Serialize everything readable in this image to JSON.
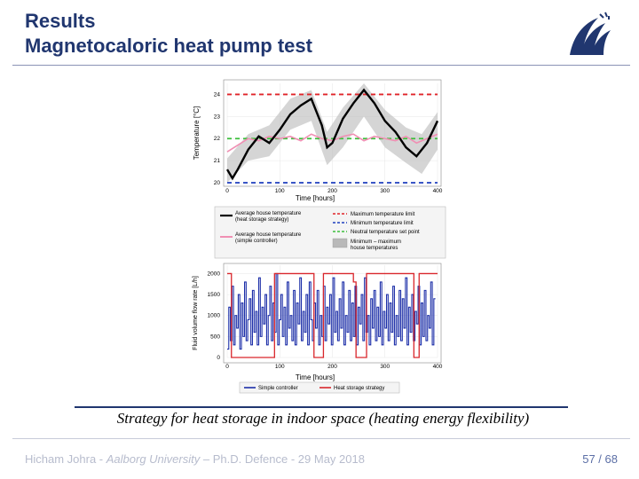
{
  "slide": {
    "title_line1": "Results",
    "title_line2": "Magnetocaloric heat pump test",
    "caption": "Strategy for heat storage in indoor space (heating energy flexibility)",
    "footer_author": "Hicham Johra - ",
    "footer_university": "Aalborg University",
    "footer_rest": " – Ph.D. Defence - 29 May 2018",
    "page_current": "57",
    "page_sep": " / ",
    "page_total": "68"
  },
  "colors": {
    "title": "#20366f",
    "black_series": "#000000",
    "pink_series": "#f08fb3",
    "max_limit": "#e0242a",
    "min_limit": "#1f3fbf",
    "setpoint": "#3cbf3c",
    "band": "#b9b9b9",
    "simple_flow": "#1c2ea8",
    "storage_flow": "#d9262b"
  },
  "chart_data": [
    {
      "type": "line",
      "xlabel": "Time [hours]",
      "ylabel": "Temperature [°C]",
      "xlim": [
        0,
        400
      ],
      "ylim": [
        20,
        24.5
      ],
      "xticks": [
        "0",
        "100",
        "200",
        "300",
        "400"
      ],
      "yticks": [
        "20",
        "21",
        "22",
        "23",
        "24"
      ],
      "grid": true,
      "series": [
        {
          "name": "Average house temperature (heat storage strategy)",
          "x": [
            0,
            10,
            20,
            40,
            60,
            80,
            100,
            120,
            140,
            160,
            180,
            190,
            200,
            220,
            240,
            260,
            280,
            300,
            320,
            340,
            360,
            380,
            400
          ],
          "values": [
            20.6,
            20.2,
            20.6,
            21.5,
            22.1,
            21.8,
            22.4,
            23.1,
            23.5,
            23.8,
            22.6,
            21.6,
            21.8,
            22.9,
            23.6,
            24.2,
            23.6,
            22.8,
            22.3,
            21.6,
            21.2,
            21.8,
            22.8
          ]
        },
        {
          "name": "Average house temperature (simple controller)",
          "x": [
            0,
            20,
            40,
            60,
            80,
            100,
            120,
            140,
            160,
            180,
            200,
            220,
            240,
            260,
            280,
            300,
            320,
            340,
            360,
            380,
            400
          ],
          "values": [
            21.4,
            21.7,
            22.0,
            21.9,
            22.1,
            22.0,
            22.1,
            21.9,
            22.2,
            22.0,
            21.9,
            22.1,
            22.2,
            21.9,
            22.1,
            22.0,
            21.9,
            22.1,
            21.8,
            22.0,
            22.2
          ]
        },
        {
          "name": "Maximum temperature limit",
          "x": [
            0,
            400
          ],
          "values": [
            24,
            24
          ]
        },
        {
          "name": "Minimum temperature limit",
          "x": [
            0,
            400
          ],
          "values": [
            20,
            20
          ]
        },
        {
          "name": "Neutral temperature set point",
          "x": [
            0,
            400
          ],
          "values": [
            22,
            22
          ]
        },
        {
          "name": "Minimum – maximum house temperatures",
          "x": [
            0,
            40,
            80,
            120,
            160,
            190,
            220,
            260,
            300,
            340,
            370,
            400
          ],
          "upper": [
            21.1,
            22.2,
            22.6,
            23.8,
            24.2,
            22.3,
            23.4,
            24.5,
            23.3,
            22.5,
            22.2,
            23.2
          ],
          "lower": [
            20.0,
            21.0,
            21.2,
            22.4,
            22.8,
            20.8,
            21.6,
            23.0,
            21.6,
            20.9,
            20.4,
            21.5
          ]
        }
      ],
      "legend": [
        {
          "label_1": "Average house temperature",
          "label_2": "(heat storage strategy)"
        },
        {
          "label_1": "Maximum temperature limit",
          "label_2": ""
        },
        {
          "label_1": "Minimum temperature limit",
          "label_2": ""
        },
        {
          "label_1": "Average house temperature",
          "label_2": "(simple controller)"
        },
        {
          "label_1": "Neutral temperature set point",
          "label_2": ""
        },
        {
          "label_1": "Minimum – maximum",
          "label_2": "house temperatures"
        }
      ]
    },
    {
      "type": "line",
      "xlabel": "Time [hours]",
      "ylabel": "Fluid volume flow rate [L/h]",
      "xlim": [
        0,
        400
      ],
      "ylim": [
        0,
        2200
      ],
      "xticks": [
        "0",
        "100",
        "200",
        "300",
        "400"
      ],
      "yticks": [
        "0",
        "500",
        "1000",
        "1500",
        "2000"
      ],
      "grid": true,
      "series": [
        {
          "name": "Simple controller",
          "x_step": 3,
          "values": [
            200,
            1200,
            400,
            1700,
            300,
            1000,
            700,
            1500,
            200,
            1300,
            500,
            1800,
            400,
            900,
            1400,
            300,
            1600,
            600,
            1100,
            300,
            1900,
            500,
            1200,
            800,
            1500,
            300,
            1000,
            1700,
            400,
            1300,
            600,
            2000,
            300,
            900,
            1500,
            500,
            1200,
            300,
            1800,
            700,
            1000,
            400,
            1600,
            300,
            1300,
            800,
            1900,
            400,
            1100,
            600,
            1500,
            300,
            1800,
            900,
            400,
            1300,
            700,
            1600,
            300,
            1000,
            500,
            1700,
            400,
            1200,
            800,
            1500,
            300,
            1900,
            600,
            1100,
            400,
            1400,
            700,
            1800,
            300,
            1000,
            600,
            1600,
            400,
            1300,
            500,
            1700,
            300,
            1200,
            800,
            1500,
            400,
            1900,
            600,
            1000,
            300,
            1400,
            700,
            1600,
            400,
            1200,
            500,
            1800,
            300,
            1100,
            700,
            1500,
            400,
            1300,
            600,
            1700,
            300,
            1000,
            500,
            1600,
            400,
            1400,
            700,
            1900,
            300,
            1200,
            600,
            1500,
            400,
            1100,
            800,
            1700,
            300,
            1300,
            500,
            1600,
            400,
            1000,
            700,
            1800,
            300,
            1400
          ]
        },
        {
          "name": "Heat storage strategy",
          "x": [
            0,
            8,
            8,
            90,
            90,
            165,
            165,
            183,
            183,
            240,
            240,
            245,
            245,
            265,
            265,
            355,
            355,
            365,
            365,
            385,
            385,
            400
          ],
          "values": [
            2000,
            2000,
            0,
            0,
            2000,
            2000,
            0,
            0,
            2000,
            2000,
            1800,
            1800,
            0,
            0,
            2000,
            2000,
            0,
            0,
            2000,
            2000,
            2000,
            2000
          ]
        }
      ],
      "legend": [
        {
          "label": "Simple controller"
        },
        {
          "label": "Heat storage strategy"
        }
      ]
    }
  ]
}
